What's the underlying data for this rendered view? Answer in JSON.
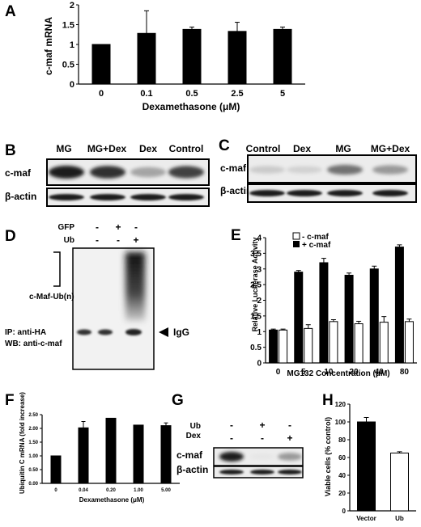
{
  "colors": {
    "ink": "#000000",
    "blot_bg": "#ececec",
    "band": "#1c1c1c"
  },
  "panels": {
    "A": {
      "letter": "A"
    },
    "B": {
      "letter": "B",
      "lanes": [
        "MG",
        "MG+Dex",
        "Dex",
        "Control"
      ],
      "rows": [
        "c-maf",
        "β-actin"
      ],
      "cmaf_intensity": [
        1.0,
        0.95,
        0.55,
        0.9
      ]
    },
    "C": {
      "letter": "C",
      "lanes": [
        "Control",
        "Dex",
        "MG",
        "MG+Dex"
      ],
      "rows": [
        "c-maf",
        "β-actin"
      ],
      "cmaf_intensity": [
        0.35,
        0.3,
        0.75,
        0.6
      ]
    },
    "D": {
      "letter": "D",
      "conditions": [
        {
          "label": "GFP",
          "values": [
            "-",
            "+",
            "-"
          ]
        },
        {
          "label": "Ub",
          "values": [
            "-",
            "-",
            "+"
          ]
        }
      ],
      "smear_label": "c-Maf-Ub(n)",
      "ip_label": "IP: anti-HA",
      "wb_label": "WB: anti-c-maf",
      "igg_label": "IgG"
    },
    "E": {
      "letter": "E"
    },
    "F": {
      "letter": "F"
    },
    "G": {
      "letter": "G",
      "conditions": [
        {
          "label": "Ub",
          "values": [
            "-",
            "+",
            "-"
          ]
        },
        {
          "label": "Dex",
          "values": [
            "-",
            "-",
            "+"
          ]
        }
      ],
      "rows": [
        "c-maf",
        "β-actin"
      ],
      "cmaf_intensity": [
        1.0,
        0.05,
        0.6
      ]
    },
    "H": {
      "letter": "H"
    }
  },
  "chart_data": [
    {
      "id": "A",
      "type": "bar",
      "ylabel": "c-maf mRNA",
      "xlabel": "Dexamethasone (μM)",
      "categories": [
        "0",
        "0.1",
        "0.5",
        "2.5",
        "5"
      ],
      "values": [
        1.0,
        1.28,
        1.38,
        1.33,
        1.38
      ],
      "errors": [
        0,
        0.57,
        0.06,
        0.23,
        0.06
      ],
      "ylim": [
        0,
        2
      ],
      "yticks": [
        "0",
        "0.5",
        "1",
        "1.5",
        "2"
      ]
    },
    {
      "id": "E",
      "type": "bar",
      "ylabel": "Relative Luciferase Activity",
      "xlabel": "MG132 Concentration (μM)",
      "categories": [
        "0",
        "5",
        "10",
        "20",
        "40",
        "80"
      ],
      "series": [
        {
          "name": "- c-maf",
          "values": [
            1.05,
            1.1,
            1.32,
            1.25,
            1.3,
            1.32
          ],
          "errors": [
            0.03,
            0.12,
            0.06,
            0.08,
            0.18,
            0.08
          ]
        },
        {
          "name": "+ c-maf",
          "values": [
            1.05,
            2.9,
            3.2,
            2.8,
            3.0,
            3.7
          ],
          "errors": [
            0.03,
            0.05,
            0.14,
            0.07,
            0.09,
            0.07
          ]
        }
      ],
      "ylim": [
        0,
        4
      ],
      "yticks": [
        "0",
        "0.5",
        "1",
        "1.5",
        "2",
        "2.5",
        "3",
        "3.5",
        "4"
      ],
      "legend": "top-left"
    },
    {
      "id": "F",
      "type": "bar",
      "ylabel": "Ubiquitin C mRNA (fold increase)",
      "xlabel": "Dexamethasone (μM)",
      "categories": [
        "0",
        "0.04",
        "0.20",
        "1.00",
        "5.00"
      ],
      "values": [
        1.0,
        2.02,
        2.37,
        2.12,
        2.1
      ],
      "errors": [
        0,
        0.23,
        0,
        0,
        0.1
      ],
      "ylim": [
        0,
        2.5
      ],
      "yticks": [
        "0.00",
        "0.50",
        "1.00",
        "1.50",
        "2.00",
        "2.50"
      ]
    },
    {
      "id": "H",
      "type": "bar",
      "ylabel": "Viable cells (% control)",
      "categories": [
        "Vector",
        "Ub"
      ],
      "values": [
        100,
        65
      ],
      "errors": [
        5,
        1.5
      ],
      "ylim": [
        0,
        120
      ],
      "yticks": [
        "0",
        "20",
        "40",
        "60",
        "80",
        "100",
        "120"
      ]
    }
  ]
}
